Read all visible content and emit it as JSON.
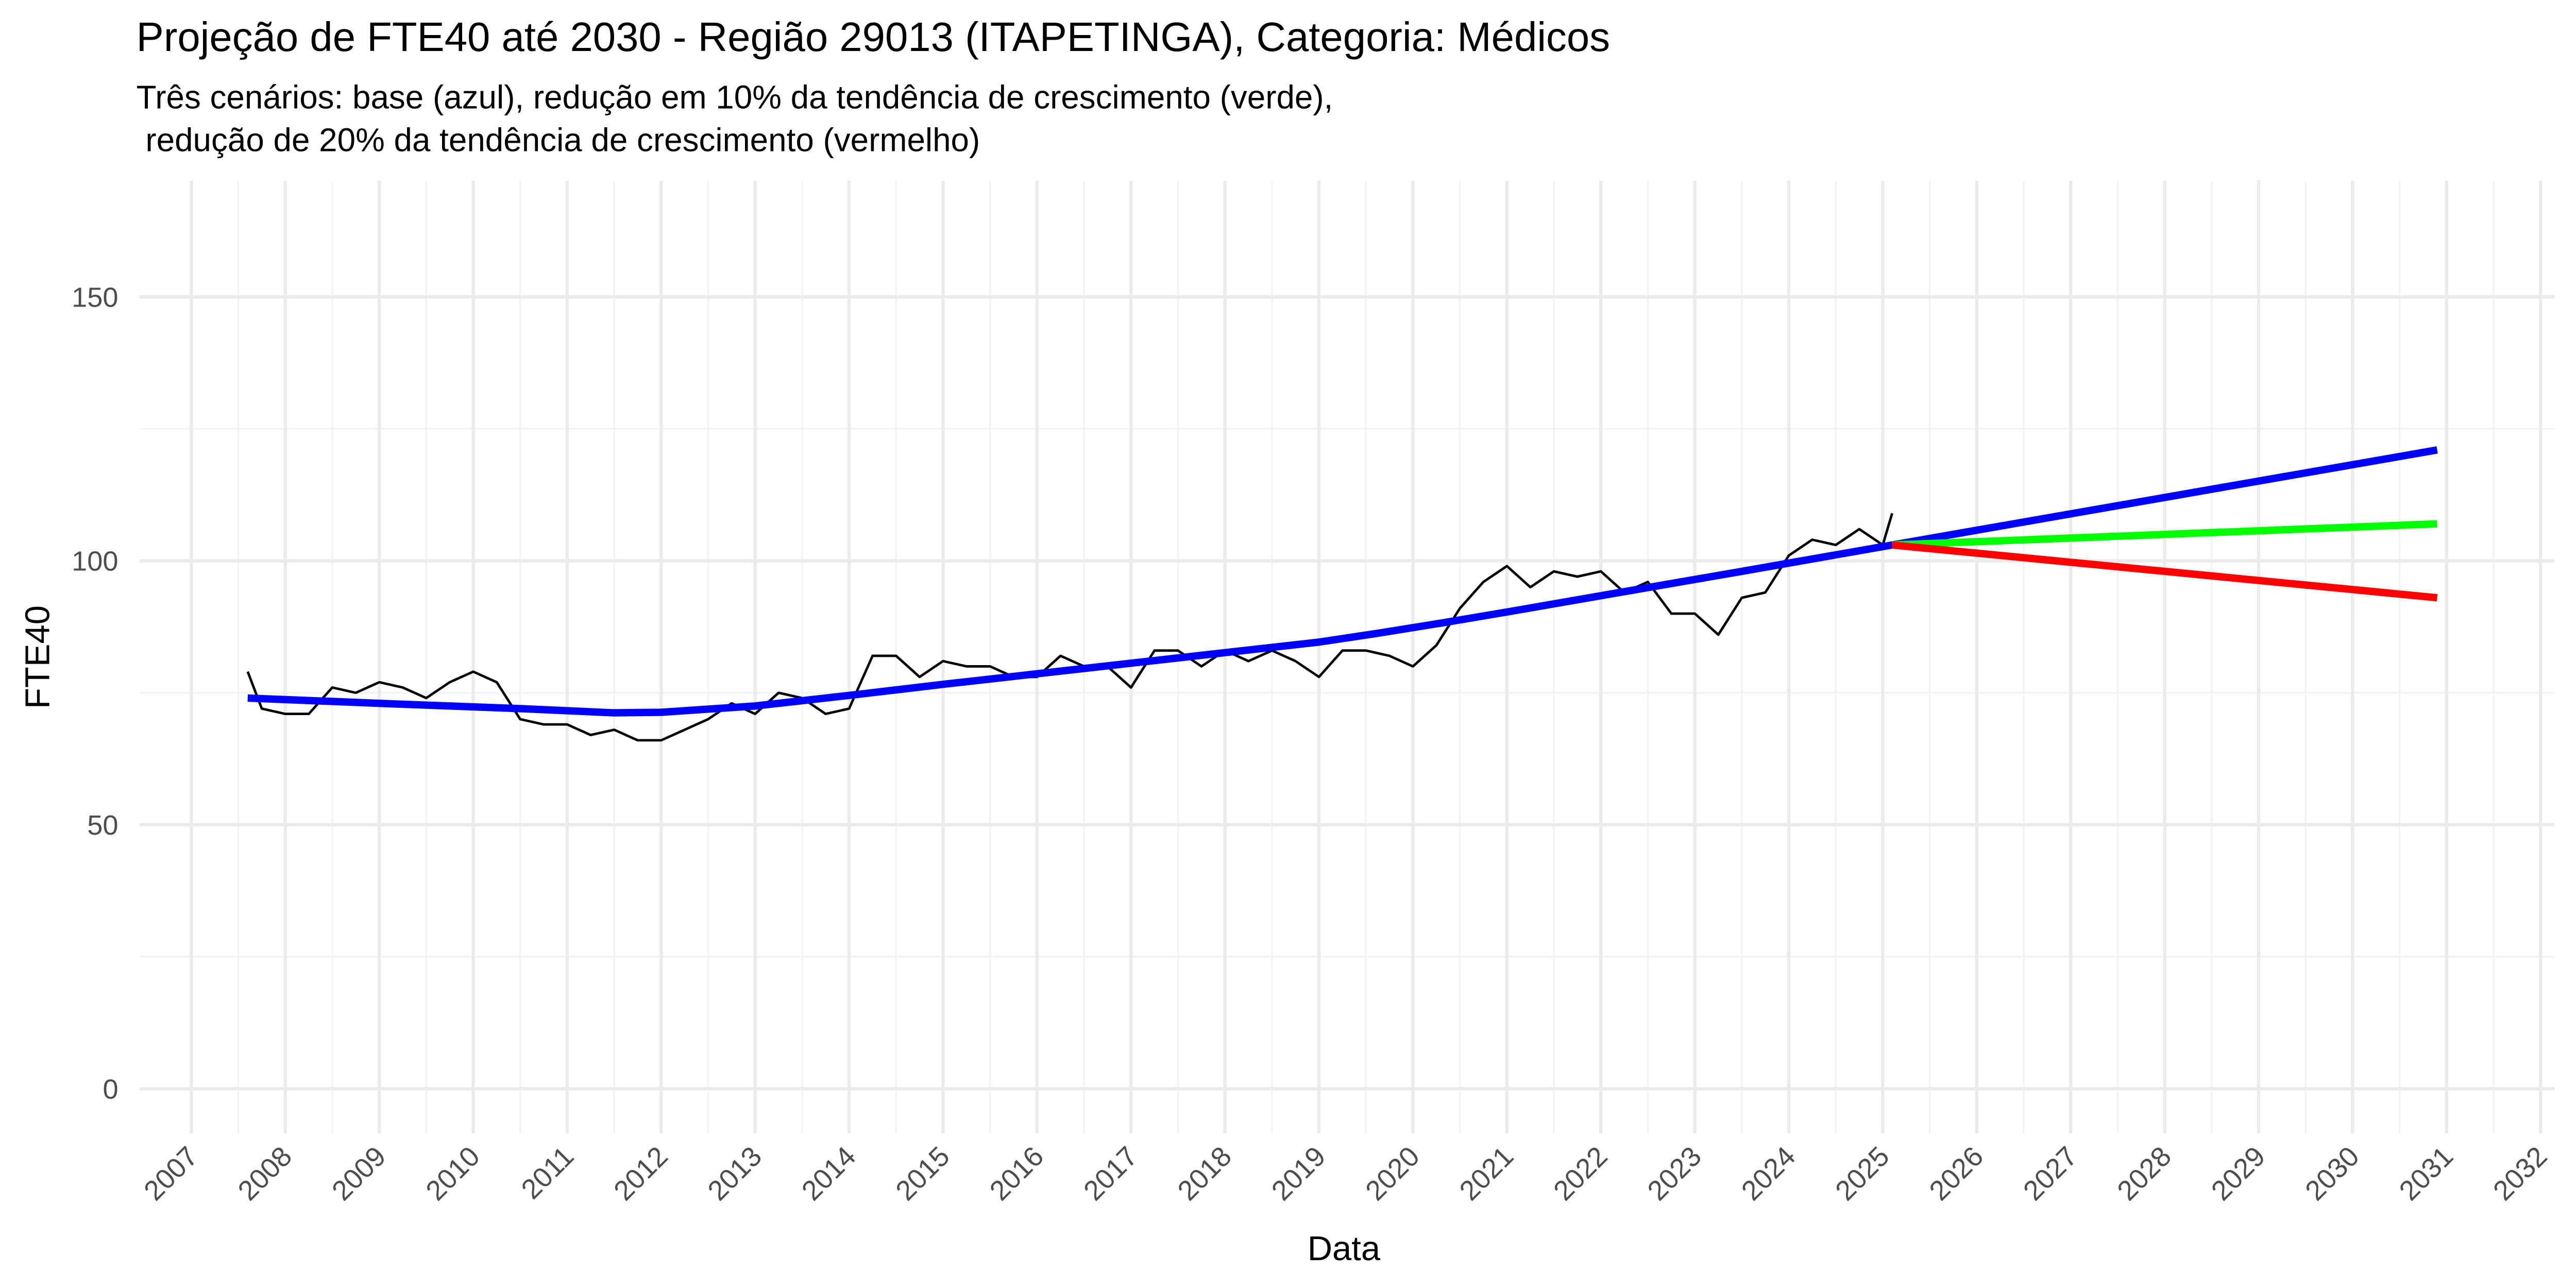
{
  "chart_data": {
    "type": "line",
    "title": "Projeção de FTE40 até 2030 - Região 29013 (ITAPETINGA), Categoria: Médicos",
    "subtitle": [
      "Três cenários: base (azul), redução em 10% da tendência de crescimento (verde),",
      " redução de 20% da tendência de crescimento (vermelho)"
    ],
    "x_label": "Data",
    "y_label": "FTE40",
    "xlim": [
      2006.45,
      2032.15
    ],
    "ylim": [
      -8.5,
      172
    ],
    "xticks": [
      2007,
      2008,
      2009,
      2010,
      2011,
      2012,
      2013,
      2014,
      2015,
      2016,
      2017,
      2018,
      2019,
      2020,
      2021,
      2022,
      2023,
      2024,
      2025,
      2026,
      2027,
      2028,
      2029,
      2030,
      2031,
      2032
    ],
    "yticks": [
      0,
      50,
      100,
      150
    ],
    "grid": true,
    "series": [
      {
        "color": "#000000",
        "width": 1.5,
        "x": [
          2007.6,
          2007.75,
          2008.0,
          2008.25,
          2008.5,
          2008.75,
          2009.0,
          2009.25,
          2009.5,
          2009.75,
          2010.0,
          2010.25,
          2010.5,
          2010.75,
          2011.0,
          2011.25,
          2011.5,
          2011.75,
          2012.0,
          2012.25,
          2012.5,
          2012.75,
          2013.0,
          2013.25,
          2013.5,
          2013.75,
          2014.0,
          2014.25,
          2014.5,
          2014.75,
          2015.0,
          2015.25,
          2015.5,
          2015.75,
          2016.0,
          2016.25,
          2016.5,
          2016.75,
          2017.0,
          2017.25,
          2017.5,
          2017.75,
          2018.0,
          2018.25,
          2018.5,
          2018.75,
          2019.0,
          2019.25,
          2019.5,
          2019.75,
          2020.0,
          2020.25,
          2020.5,
          2020.75,
          2021.0,
          2021.25,
          2021.5,
          2021.75,
          2022.0,
          2022.25,
          2022.5,
          2022.75,
          2023.0,
          2023.25,
          2023.5,
          2023.75,
          2024.0,
          2024.25,
          2024.5,
          2024.75,
          2025.0,
          2025.1
        ],
        "values": [
          79,
          72,
          71,
          71,
          76,
          75,
          77,
          76,
          74,
          77,
          79,
          77,
          70,
          69,
          69,
          67,
          68,
          66,
          66,
          68,
          70,
          73,
          71,
          75,
          74,
          71,
          72,
          82,
          82,
          78,
          81,
          80,
          80,
          78,
          78,
          82,
          80,
          80,
          76,
          83,
          83,
          80,
          83,
          81,
          83,
          81,
          78,
          83,
          83,
          82,
          80,
          84,
          91,
          96,
          99,
          95,
          98,
          97,
          98,
          94,
          96,
          90,
          90,
          86,
          93,
          94,
          101,
          104,
          103,
          106,
          103,
          109
        ]
      },
      {
        "color": "#0000ff",
        "width": 4.5,
        "x": [
          2007.6,
          2009.0,
          2010.5,
          2011.5,
          2012.0,
          2013.0,
          2014.0,
          2015.0,
          2016.0,
          2017.0,
          2018.0,
          2019.0,
          2019.6,
          2020.3,
          2021.0,
          2022.2,
          2023.5,
          2025.1,
          2030.9
        ],
        "values": [
          74,
          73,
          72,
          71.2,
          71.3,
          72.5,
          74.5,
          76.6,
          78.6,
          80.6,
          82.6,
          84.6,
          86.2,
          88.2,
          90.3,
          94,
          98,
          103,
          121
        ]
      },
      {
        "color": "#00ff00",
        "width": 4.5,
        "x": [
          2025.1,
          2030.9
        ],
        "values": [
          103,
          107
        ]
      },
      {
        "color": "#ff0000",
        "width": 4.5,
        "x": [
          2025.1,
          2030.9
        ],
        "values": [
          103,
          93
        ]
      }
    ]
  }
}
